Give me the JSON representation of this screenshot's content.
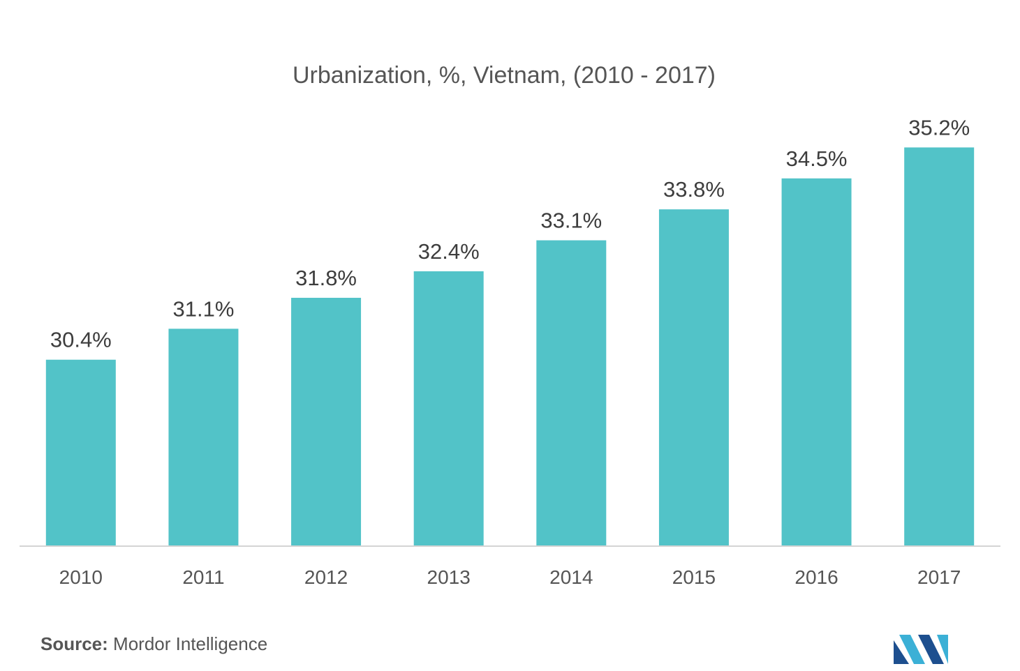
{
  "chart_data": {
    "type": "bar",
    "title": "Urbanization, %, Vietnam, (2010 - 2017)",
    "xlabel": "",
    "ylabel": "",
    "categories": [
      "2010",
      "2011",
      "2012",
      "2013",
      "2014",
      "2015",
      "2016",
      "2017"
    ],
    "values": [
      30.4,
      31.1,
      31.8,
      32.4,
      33.1,
      33.8,
      34.5,
      35.2
    ],
    "value_labels": [
      "30.4%",
      "31.1%",
      "31.8%",
      "32.4%",
      "33.1%",
      "33.8%",
      "34.5%",
      "35.2%"
    ],
    "ylim": [
      26.2,
      35.9
    ],
    "grid": false,
    "legend": "none",
    "bar_color": "#52c3c8",
    "axis_color": "#d4d4d4"
  },
  "source": {
    "label": "Source:",
    "text": "Mordor Intelligence"
  },
  "logo": {
    "icon": "mordor-intelligence-logo-icon",
    "colors": [
      "#1d4f8f",
      "#3bb0d6"
    ]
  }
}
